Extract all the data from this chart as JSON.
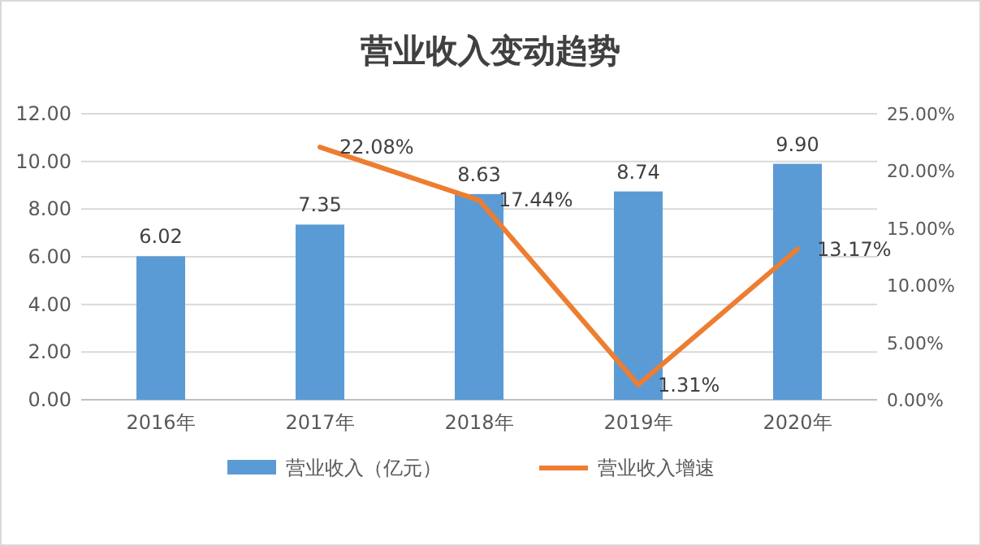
{
  "chart_data": {
    "type": "bar",
    "title": "营业收入变动趋势",
    "categories": [
      "2016年",
      "2017年",
      "2018年",
      "2019年",
      "2020年"
    ],
    "series": [
      {
        "name": "营业收入（亿元）",
        "color": "#5b9bd5",
        "values": [
          6.02,
          7.35,
          8.63,
          8.74,
          9.9
        ],
        "value_labels": [
          "6.02",
          "7.35",
          "8.63",
          "8.74",
          "9.90"
        ]
      },
      {
        "name": "营业收入增速",
        "type": "line",
        "axis": "y2",
        "color": "#ed7d31",
        "values": [
          null,
          22.08,
          17.44,
          1.31,
          13.17
        ],
        "value_labels": [
          null,
          "22.08%",
          "17.44%",
          "1.31%",
          "13.17%"
        ]
      }
    ],
    "ylim": [
      0,
      12
    ],
    "yticks": [
      {
        "value": 0,
        "label": "0.00"
      },
      {
        "value": 2,
        "label": "2.00"
      },
      {
        "value": 4,
        "label": "4.00"
      },
      {
        "value": 6,
        "label": "6.00"
      },
      {
        "value": 8,
        "label": "8.00"
      },
      {
        "value": 10,
        "label": "10.00"
      },
      {
        "value": 12,
        "label": "12.00"
      }
    ],
    "y2lim": [
      0,
      25
    ],
    "y2ticks": [
      {
        "value": 0,
        "label": "0.00%"
      },
      {
        "value": 5,
        "label": "5.00%"
      },
      {
        "value": 10,
        "label": "10.00%"
      },
      {
        "value": 15,
        "label": "15.00%"
      },
      {
        "value": 20,
        "label": "20.00%"
      },
      {
        "value": 25,
        "label": "25.00%"
      }
    ],
    "grid": "y",
    "legend": "bottom",
    "marker": "none",
    "line_style": "solid"
  }
}
